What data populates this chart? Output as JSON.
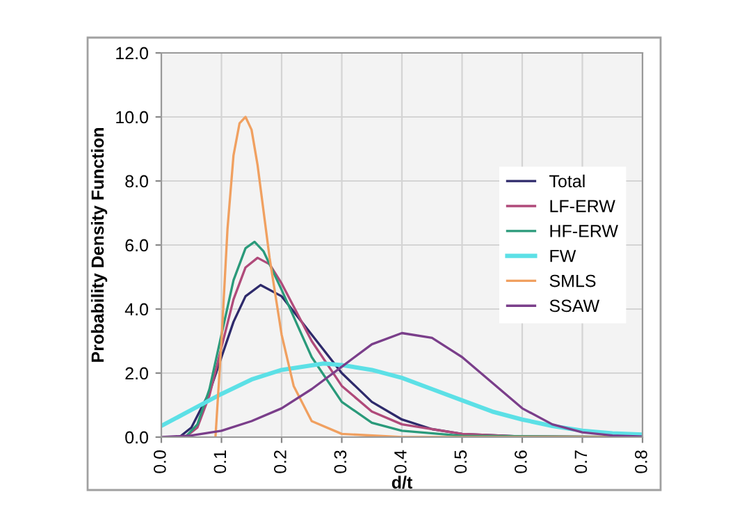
{
  "chart_data": {
    "type": "line",
    "xlabel": "d/t",
    "ylabel": "Probability Density Function",
    "xlim": [
      0,
      0.8
    ],
    "ylim": [
      0,
      12
    ],
    "xticks": [
      {
        "value": 0,
        "label": "0.0"
      },
      0.1,
      0.2,
      0.3,
      0.4,
      0.5,
      0.6,
      0.7,
      0.8
    ],
    "yticks": [
      {
        "value": 0,
        "label": "0.0"
      },
      {
        "value": 2,
        "label": "2.0"
      },
      {
        "value": 4,
        "label": "4.0"
      },
      {
        "value": 6,
        "label": "6.0"
      },
      {
        "value": 8,
        "label": "8.0"
      },
      {
        "value": 10,
        "label": "10.0"
      },
      {
        "value": 12,
        "label": "12.0"
      }
    ],
    "grid": true,
    "legend": "right",
    "marker": "none",
    "line_style": "solid",
    "series": [
      {
        "name": "Total",
        "color": "#2e2a6b",
        "x": [
          0.03,
          0.05,
          0.08,
          0.1,
          0.12,
          0.14,
          0.165,
          0.2,
          0.25,
          0.3,
          0.35,
          0.4,
          0.45,
          0.5,
          0.6,
          0.8
        ],
        "values": [
          0,
          0.3,
          1.4,
          2.5,
          3.6,
          4.4,
          4.75,
          4.4,
          3.2,
          2.0,
          1.1,
          0.55,
          0.25,
          0.1,
          0.02,
          0
        ]
      },
      {
        "name": "LF-ERW",
        "color": "#b04a7a",
        "x": [
          0.04,
          0.06,
          0.08,
          0.1,
          0.12,
          0.14,
          0.16,
          0.18,
          0.2,
          0.25,
          0.3,
          0.35,
          0.4,
          0.5,
          0.6,
          0.8
        ],
        "values": [
          0,
          0.3,
          1.3,
          2.8,
          4.3,
          5.3,
          5.6,
          5.4,
          4.8,
          3.0,
          1.6,
          0.8,
          0.4,
          0.1,
          0.02,
          0
        ]
      },
      {
        "name": "HF-ERW",
        "color": "#2a9a7a",
        "x": [
          0.04,
          0.06,
          0.08,
          0.1,
          0.12,
          0.14,
          0.155,
          0.17,
          0.2,
          0.25,
          0.3,
          0.35,
          0.4,
          0.5,
          0.8
        ],
        "values": [
          0,
          0.4,
          1.5,
          3.2,
          4.9,
          5.9,
          6.1,
          5.8,
          4.6,
          2.5,
          1.1,
          0.45,
          0.2,
          0.04,
          0
        ]
      },
      {
        "name": "FW",
        "color": "#5ce0e6",
        "x": [
          0,
          0.05,
          0.1,
          0.15,
          0.2,
          0.27,
          0.3,
          0.35,
          0.4,
          0.45,
          0.5,
          0.55,
          0.6,
          0.65,
          0.7,
          0.75,
          0.8
        ],
        "values": [
          0.35,
          0.85,
          1.35,
          1.8,
          2.1,
          2.3,
          2.25,
          2.1,
          1.85,
          1.5,
          1.15,
          0.8,
          0.55,
          0.35,
          0.2,
          0.12,
          0.08
        ]
      },
      {
        "name": "SMLS",
        "color": "#f0a060",
        "x": [
          0.09,
          0.1,
          0.11,
          0.12,
          0.13,
          0.14,
          0.15,
          0.16,
          0.18,
          0.2,
          0.22,
          0.25,
          0.3,
          0.4,
          0.8
        ],
        "values": [
          0,
          3.0,
          6.5,
          8.8,
          9.8,
          10.0,
          9.6,
          8.5,
          5.6,
          3.2,
          1.6,
          0.5,
          0.1,
          0,
          0
        ]
      },
      {
        "name": "SSAW",
        "color": "#7a3e8a",
        "x": [
          0,
          0.05,
          0.1,
          0.15,
          0.2,
          0.25,
          0.3,
          0.35,
          0.4,
          0.45,
          0.5,
          0.55,
          0.6,
          0.65,
          0.7,
          0.75,
          0.8
        ],
        "values": [
          0,
          0.05,
          0.2,
          0.5,
          0.9,
          1.5,
          2.2,
          2.9,
          3.25,
          3.1,
          2.5,
          1.7,
          0.9,
          0.4,
          0.15,
          0.05,
          0.02
        ]
      }
    ]
  }
}
